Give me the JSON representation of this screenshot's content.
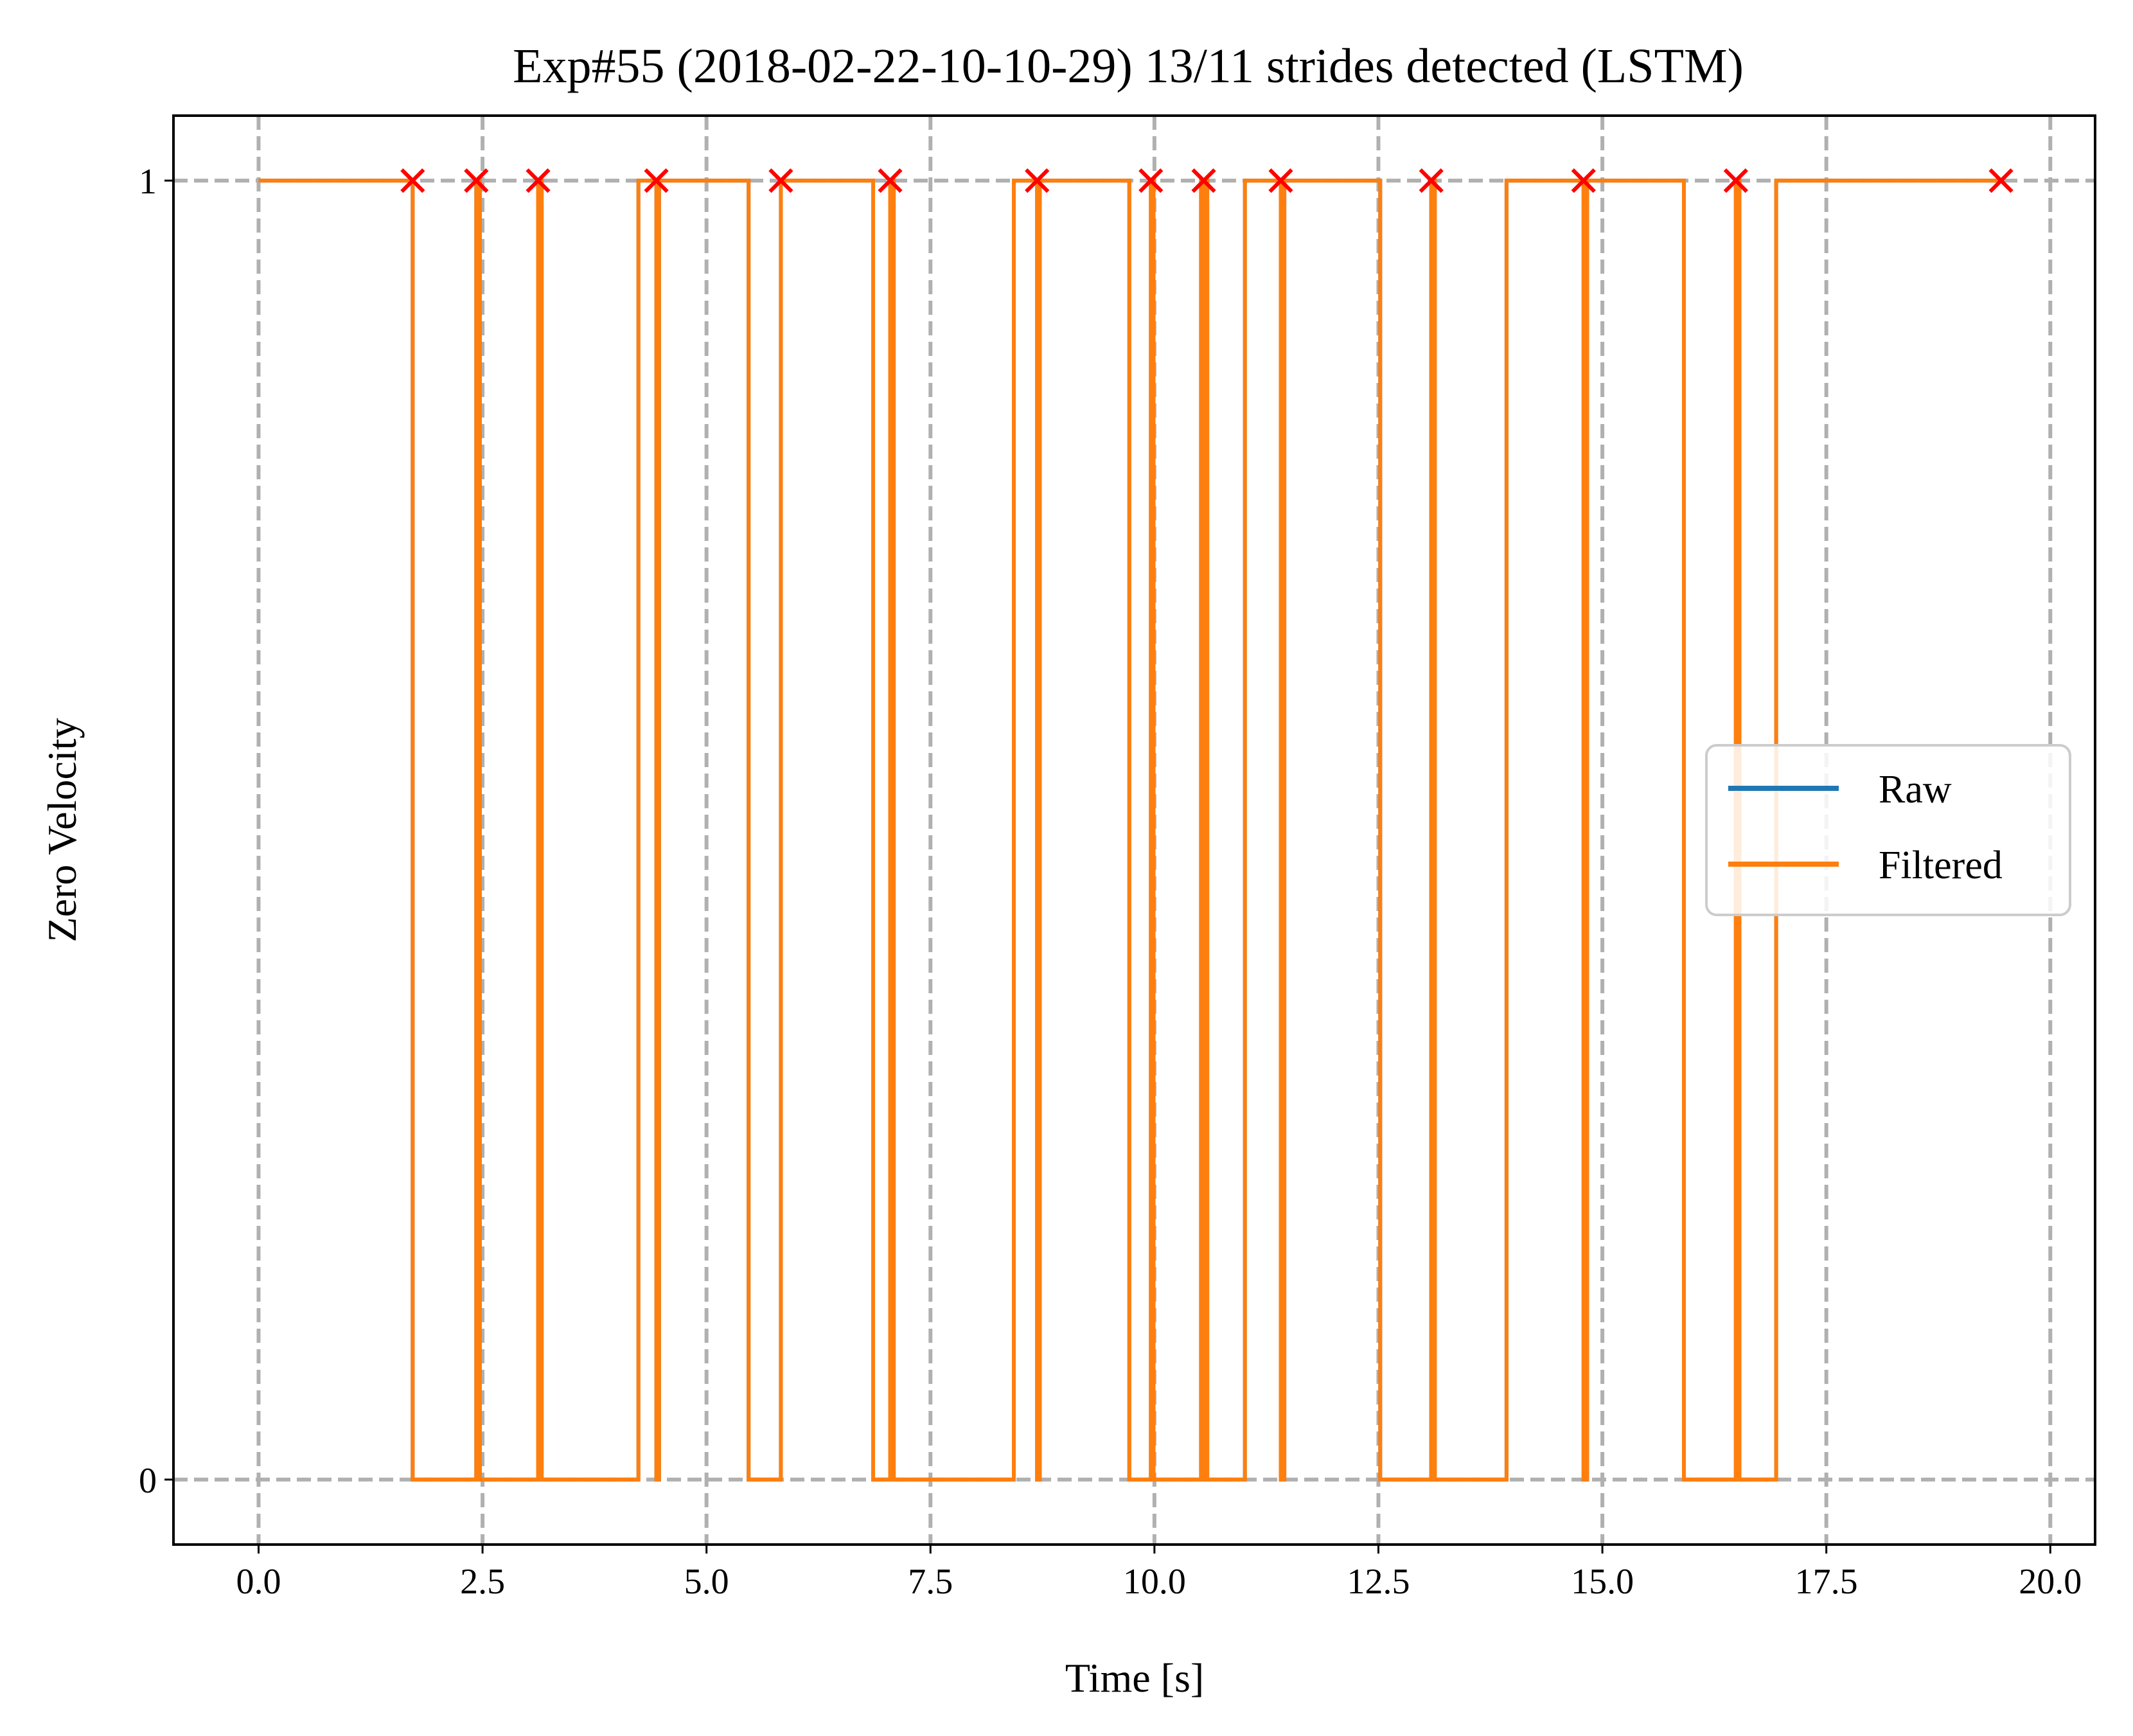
{
  "chart_data": {
    "type": "line",
    "title": "Exp#55 (2018-02-22-10-10-29) 13/11 strides detected (LSTM)",
    "xlabel": "Time [s]",
    "ylabel": "Zero Velocity",
    "xlim": [
      -0.95,
      20.5
    ],
    "ylim": [
      -0.05,
      1.05
    ],
    "xticks": [
      0.0,
      2.5,
      5.0,
      7.5,
      10.0,
      12.5,
      15.0,
      17.5,
      20.0
    ],
    "xtick_labels": [
      "0.0",
      "2.5",
      "5.0",
      "7.5",
      "10.0",
      "12.5",
      "15.0",
      "17.5",
      "20.0"
    ],
    "yticks": [
      0,
      1
    ],
    "ytick_labels": [
      "0",
      "1"
    ],
    "grid": true,
    "grid_style": "dashed",
    "legend_position": "center-right",
    "colors": {
      "raw": "#1f77b4",
      "filtered": "#ff7f0e",
      "markers": "#ff0000",
      "grid": "#b0b0b0"
    },
    "series": [
      {
        "name": "Raw",
        "x": [
          0.0,
          1.72,
          1.72,
          2.43,
          2.43,
          2.47,
          2.47,
          3.12,
          3.12,
          3.16,
          3.16,
          4.24,
          4.24,
          4.44,
          4.44,
          4.47,
          4.47,
          5.47,
          5.47,
          5.83,
          5.83,
          6.86,
          6.86,
          7.05,
          7.05,
          7.09,
          7.09,
          8.43,
          8.43,
          8.69,
          8.69,
          8.72,
          8.72,
          9.72,
          9.72,
          9.96,
          9.96,
          9.99,
          9.99,
          10.52,
          10.52,
          10.55,
          10.55,
          10.57,
          10.57,
          10.59,
          10.59,
          11.01,
          11.01,
          11.41,
          11.41,
          11.45,
          11.45,
          12.52,
          12.52,
          13.09,
          13.09,
          13.13,
          13.13,
          13.93,
          13.93,
          14.79,
          14.79,
          14.83,
          14.83,
          15.91,
          15.91,
          16.49,
          16.49,
          16.53,
          16.53,
          16.94,
          16.94,
          19.45
        ],
        "y": [
          1,
          1,
          0,
          0,
          1,
          1,
          0,
          0,
          1,
          1,
          0,
          0,
          1,
          1,
          0,
          0,
          1,
          1,
          0,
          0,
          1,
          1,
          0,
          0,
          1,
          1,
          0,
          0,
          1,
          1,
          0,
          0,
          1,
          1,
          0,
          0,
          1,
          1,
          0,
          0,
          1,
          1,
          0,
          0,
          1,
          1,
          0,
          0,
          1,
          1,
          0,
          0,
          1,
          1,
          0,
          0,
          1,
          1,
          0,
          0,
          1,
          1,
          0,
          0,
          1,
          1,
          0,
          0,
          1,
          1,
          0,
          0,
          1,
          1
        ]
      },
      {
        "name": "Filtered",
        "x": [
          0.0,
          1.72,
          1.72,
          2.43,
          2.43,
          2.47,
          2.47,
          3.12,
          3.12,
          3.16,
          3.16,
          4.24,
          4.24,
          4.44,
          4.44,
          4.47,
          4.47,
          5.47,
          5.47,
          5.83,
          5.83,
          6.86,
          6.86,
          7.05,
          7.05,
          7.09,
          7.09,
          8.43,
          8.43,
          8.69,
          8.69,
          8.72,
          8.72,
          9.72,
          9.72,
          9.96,
          9.96,
          9.99,
          9.99,
          10.52,
          10.52,
          10.55,
          10.55,
          10.57,
          10.57,
          10.59,
          10.59,
          11.01,
          11.01,
          11.41,
          11.41,
          11.45,
          11.45,
          12.52,
          12.52,
          13.09,
          13.09,
          13.13,
          13.13,
          13.93,
          13.93,
          14.79,
          14.79,
          14.83,
          14.83,
          15.91,
          15.91,
          16.49,
          16.49,
          16.53,
          16.53,
          16.94,
          16.94,
          19.45
        ],
        "y": [
          1,
          1,
          0,
          0,
          1,
          1,
          0,
          0,
          1,
          1,
          0,
          0,
          1,
          1,
          0,
          0,
          1,
          1,
          0,
          0,
          1,
          1,
          0,
          0,
          1,
          1,
          0,
          0,
          1,
          1,
          0,
          0,
          1,
          1,
          0,
          0,
          1,
          1,
          0,
          0,
          1,
          1,
          0,
          0,
          1,
          1,
          0,
          0,
          1,
          1,
          0,
          0,
          1,
          1,
          0,
          0,
          1,
          1,
          0,
          0,
          1,
          1,
          0,
          0,
          1,
          1,
          0,
          0,
          1,
          1,
          0,
          0,
          1,
          1
        ]
      }
    ],
    "stride_markers": {
      "x": [
        1.72,
        2.43,
        3.12,
        4.44,
        5.83,
        7.05,
        8.69,
        9.96,
        10.55,
        11.41,
        13.09,
        14.79,
        16.49,
        19.45
      ],
      "y": [
        1,
        1,
        1,
        1,
        1,
        1,
        1,
        1,
        1,
        1,
        1,
        1,
        1,
        1
      ]
    }
  }
}
